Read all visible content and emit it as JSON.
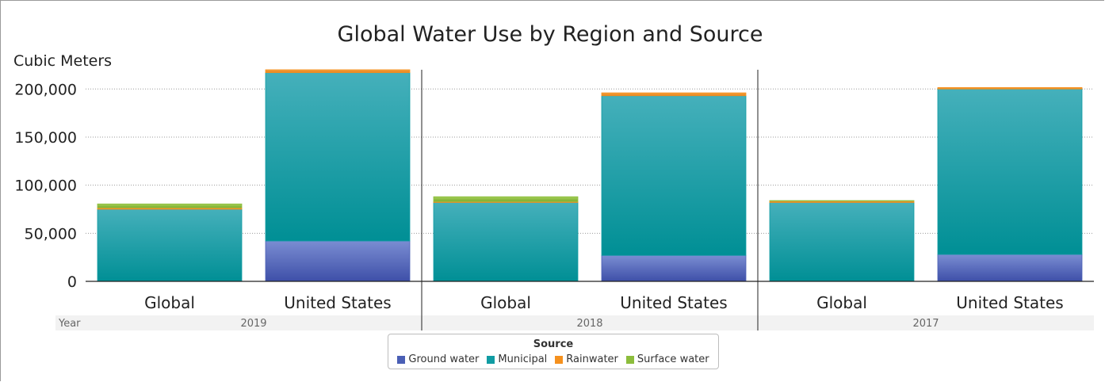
{
  "chart_data": {
    "type": "bar",
    "title": "Global Water Use by Region and Source",
    "ylabel": "Cubic Meters",
    "group_label": "Year",
    "ylim": [
      0,
      220000
    ],
    "yticks": [
      0,
      50000,
      100000,
      150000,
      200000
    ],
    "ytick_labels": [
      "0",
      "50,000",
      "100,000",
      "150,000",
      "200,000"
    ],
    "groups": [
      {
        "label": "2019",
        "categories": [
          "Global",
          "United States"
        ]
      },
      {
        "label": "2018",
        "categories": [
          "Global",
          "United States"
        ]
      },
      {
        "label": "2017",
        "categories": [
          "Global",
          "United States"
        ]
      }
    ],
    "series": [
      {
        "name": "Ground water",
        "color": "#4a5fb5",
        "values": [
          0,
          42000,
          0,
          27000,
          0,
          28000
        ]
      },
      {
        "name": "Municipal",
        "color": "#109ca3",
        "values": [
          75000,
          175000,
          82000,
          166000,
          82000,
          172000
        ]
      },
      {
        "name": "Rainwater",
        "color": "#f5911e",
        "values": [
          1500,
          3000,
          1000,
          3000,
          1500,
          1500
        ]
      },
      {
        "name": "Surface water",
        "color": "#8cbd3c",
        "values": [
          4000,
          0,
          5000,
          0,
          500,
          0
        ]
      }
    ],
    "grid": true,
    "legend_position": "bottom-center",
    "legend_title": "Source"
  }
}
